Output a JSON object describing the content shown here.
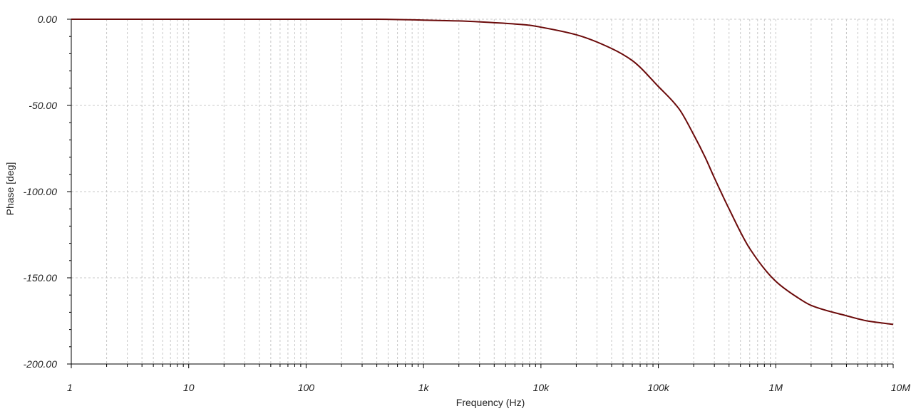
{
  "chart_data": {
    "type": "line",
    "title": "",
    "xlabel": "Frequency (Hz)",
    "ylabel": "Phase [deg]",
    "xscale": "log",
    "xlim": [
      1,
      10000000
    ],
    "ylim": [
      -200,
      0
    ],
    "grid": true,
    "legend": "none",
    "x_tick_labels": [
      "1",
      "10",
      "100",
      "1k",
      "10k",
      "100k",
      "1M",
      "10M"
    ],
    "y_tick_labels": [
      "0.00",
      "-50.00",
      "-100.00",
      "-150.00",
      "-200.00"
    ],
    "colors": {
      "line": "#6b0a0a",
      "grid": "#c8c8c8",
      "axis": "#000000"
    },
    "series": [
      {
        "x": [
          1,
          10,
          100,
          400,
          1000,
          2000,
          4000,
          8000,
          10000,
          20000,
          40000,
          60000,
          100000,
          150000,
          200000,
          250000,
          300000,
          400000,
          600000,
          1000000,
          1500000,
          2000000,
          4000000,
          6000000,
          10000000
        ],
        "values": [
          0,
          0,
          0,
          0,
          -0.5,
          -1.0,
          -2.0,
          -3.5,
          -4.6,
          -9,
          -17,
          -24,
          -39,
          -52,
          -67,
          -80,
          -92,
          -110,
          -133,
          -152,
          -161,
          -166,
          -172,
          -175,
          -177
        ]
      }
    ]
  }
}
